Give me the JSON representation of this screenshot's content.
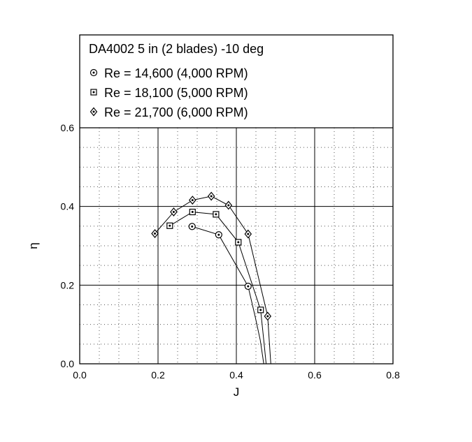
{
  "chart_data": {
    "type": "line",
    "title": "DA4002 5 in (2 blades) -10 deg",
    "xlabel": "J",
    "ylabel": "η",
    "xlim": [
      0.0,
      0.8
    ],
    "ylim": [
      0.0,
      0.6
    ],
    "x_ticks": [
      "0.0",
      "0.2",
      "0.4",
      "0.6",
      "0.8"
    ],
    "y_ticks": [
      "0.0",
      "0.2",
      "0.4",
      "0.6"
    ],
    "grid": true,
    "legend_position": "top",
    "series": [
      {
        "name": "Re = 14,600 (4,000 RPM)",
        "marker": "circle-dot",
        "points": [
          [
            0.287,
            0.349
          ],
          [
            0.355,
            0.328
          ],
          [
            0.43,
            0.197
          ]
        ],
        "curve_extension": [
          [
            0.448,
            0.12
          ],
          [
            0.461,
            0.06
          ],
          [
            0.47,
            0.0
          ]
        ]
      },
      {
        "name": "Re = 18,100 (5,000 RPM)",
        "marker": "square-dot",
        "points": [
          [
            0.23,
            0.351
          ],
          [
            0.288,
            0.386
          ],
          [
            0.348,
            0.38
          ],
          [
            0.405,
            0.309
          ],
          [
            0.462,
            0.137
          ]
        ],
        "curve_extension": [
          [
            0.47,
            0.06
          ],
          [
            0.476,
            0.0
          ]
        ]
      },
      {
        "name": "Re = 21,700 (6,000 RPM)",
        "marker": "diamond-dot",
        "points": [
          [
            0.192,
            0.331
          ],
          [
            0.24,
            0.386
          ],
          [
            0.288,
            0.416
          ],
          [
            0.336,
            0.426
          ],
          [
            0.38,
            0.403
          ],
          [
            0.43,
            0.33
          ],
          [
            0.48,
            0.121
          ]
        ],
        "curve_extension": [
          [
            0.484,
            0.06
          ],
          [
            0.488,
            0.0
          ]
        ]
      }
    ]
  }
}
